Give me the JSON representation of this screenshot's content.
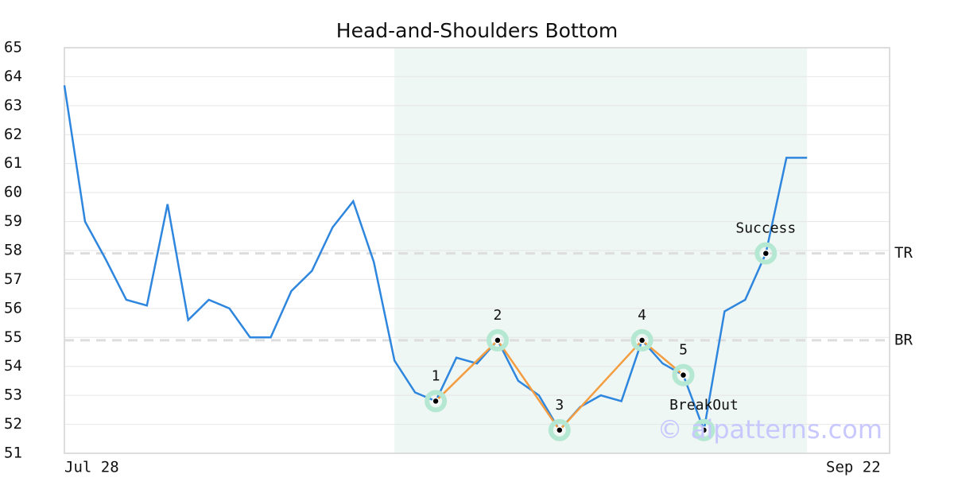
{
  "chart_data": {
    "type": "line",
    "title": "Head-and-Shoulders Bottom",
    "x": [
      0,
      1,
      2,
      3,
      4,
      5,
      6,
      7,
      8,
      9,
      10,
      11,
      12,
      13,
      14,
      15,
      16,
      17,
      18,
      19,
      20,
      21,
      22,
      23,
      24,
      25,
      26,
      27,
      28,
      29,
      30,
      31,
      32,
      33,
      34,
      35,
      36
    ],
    "series": [
      {
        "color": "#2e86de",
        "values": [
          63.7,
          59.0,
          57.7,
          56.3,
          56.1,
          59.6,
          55.6,
          56.3,
          56.0,
          55.0,
          55.0,
          56.6,
          57.3,
          58.8,
          59.7,
          57.6,
          54.2,
          53.1,
          52.8,
          54.3,
          54.1,
          54.9,
          53.5,
          53.0,
          51.8,
          52.6,
          53.0,
          52.8,
          54.9,
          54.1,
          53.7,
          51.8,
          55.9,
          56.3,
          57.9,
          61.2,
          61.2
        ]
      }
    ],
    "xlim": [
      0,
      40
    ],
    "xticks": [
      {
        "value": 0,
        "label": "Jul 28"
      },
      {
        "value": 40,
        "label": "Sep 22"
      }
    ],
    "ylim": [
      51,
      65
    ],
    "yticks": [
      51,
      52,
      53,
      54,
      55,
      56,
      57,
      58,
      59,
      60,
      61,
      62,
      63,
      64,
      65
    ],
    "grid": true,
    "shade": {
      "x": [
        16,
        36
      ],
      "color": "#eef7f3"
    },
    "pattern_color": "#f39c40",
    "marker_color": "#b5e8d2",
    "pattern_points": [
      {
        "label": "1",
        "x": 18,
        "y": 52.8
      },
      {
        "label": "2",
        "x": 21,
        "y": 54.9
      },
      {
        "label": "3",
        "x": 24,
        "y": 51.8
      },
      {
        "label": "4",
        "x": 28,
        "y": 54.9
      },
      {
        "label": "5",
        "x": 30,
        "y": 53.7
      }
    ],
    "events": [
      {
        "label": "BreakOut",
        "x": 31,
        "y": 51.8
      },
      {
        "label": "Success",
        "x": 34,
        "y": 57.9
      }
    ],
    "levels": [
      {
        "label": "TR",
        "value": 57.9
      },
      {
        "label": "BR",
        "value": 54.9
      }
    ],
    "watermark": "© aipatterns.com"
  }
}
